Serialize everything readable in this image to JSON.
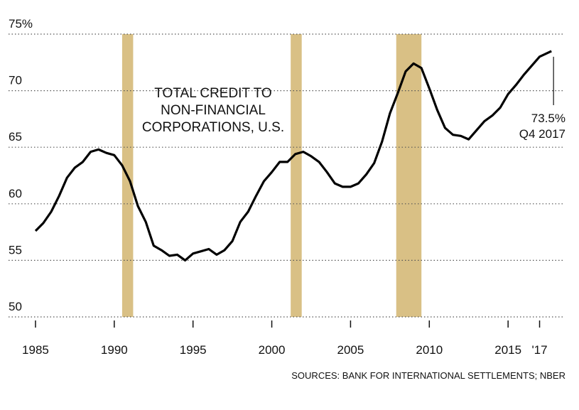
{
  "chart_data": {
    "type": "line",
    "title": [
      "TOTAL CREDIT TO",
      "NON-FINANCIAL",
      "CORPORATIONS, U.S."
    ],
    "annotation": [
      "73.5%",
      "Q4 2017"
    ],
    "source": "SOURCES: BANK FOR INTERNATIONAL SETTLEMENTS; NBER",
    "x": [
      1985.0,
      1985.5,
      1986.0,
      1986.5,
      1987.0,
      1987.5,
      1988.0,
      1988.5,
      1989.0,
      1989.5,
      1990.0,
      1990.5,
      1991.0,
      1991.5,
      1992.0,
      1992.5,
      1993.0,
      1993.5,
      1994.0,
      1994.5,
      1995.0,
      1995.5,
      1996.0,
      1996.5,
      1997.0,
      1997.5,
      1998.0,
      1998.5,
      1999.0,
      1999.5,
      2000.0,
      2000.5,
      2001.0,
      2001.5,
      2002.0,
      2002.5,
      2003.0,
      2003.5,
      2004.0,
      2004.5,
      2005.0,
      2005.5,
      2006.0,
      2006.5,
      2007.0,
      2007.5,
      2008.0,
      2008.5,
      2009.0,
      2009.5,
      2010.0,
      2010.5,
      2011.0,
      2011.5,
      2012.0,
      2012.5,
      2013.0,
      2013.5,
      2014.0,
      2014.5,
      2015.0,
      2015.5,
      2016.0,
      2016.5,
      2017.0,
      2017.75
    ],
    "series": [
      {
        "color": "#000000",
        "values": [
          57.6,
          58.3,
          59.3,
          60.7,
          62.3,
          63.2,
          63.7,
          64.6,
          64.8,
          64.5,
          64.3,
          63.4,
          62.0,
          59.8,
          58.4,
          56.3,
          55.9,
          55.4,
          55.5,
          55.0,
          55.6,
          55.8,
          56.0,
          55.5,
          55.9,
          56.7,
          58.4,
          59.3,
          60.7,
          62.0,
          62.8,
          63.7,
          63.7,
          64.4,
          64.6,
          64.2,
          63.7,
          62.8,
          61.8,
          61.5,
          61.5,
          61.8,
          62.6,
          63.6,
          65.5,
          68.0,
          69.8,
          71.7,
          72.4,
          72.0,
          70.2,
          68.3,
          66.7,
          66.1,
          66.0,
          65.7,
          66.5,
          67.3,
          67.8,
          68.5,
          69.7,
          70.5,
          71.4,
          72.2,
          73.0,
          73.5
        ]
      }
    ],
    "recessions": [
      [
        1990.5,
        1991.2
      ],
      [
        2001.2,
        2001.9
      ],
      [
        2007.9,
        2009.5
      ]
    ],
    "recession_color": "#d9c085",
    "xlim": [
      1984.1,
      2018.6
    ],
    "xticks": [
      1985,
      1990,
      1995,
      2000,
      2005,
      2010,
      2015,
      {
        "value": 2017,
        "label": "'17"
      }
    ],
    "ylim": [
      50,
      75
    ],
    "yticks": [
      50,
      55,
      60,
      65,
      70,
      {
        "value": 75,
        "label": "75%"
      }
    ],
    "grid": true
  }
}
